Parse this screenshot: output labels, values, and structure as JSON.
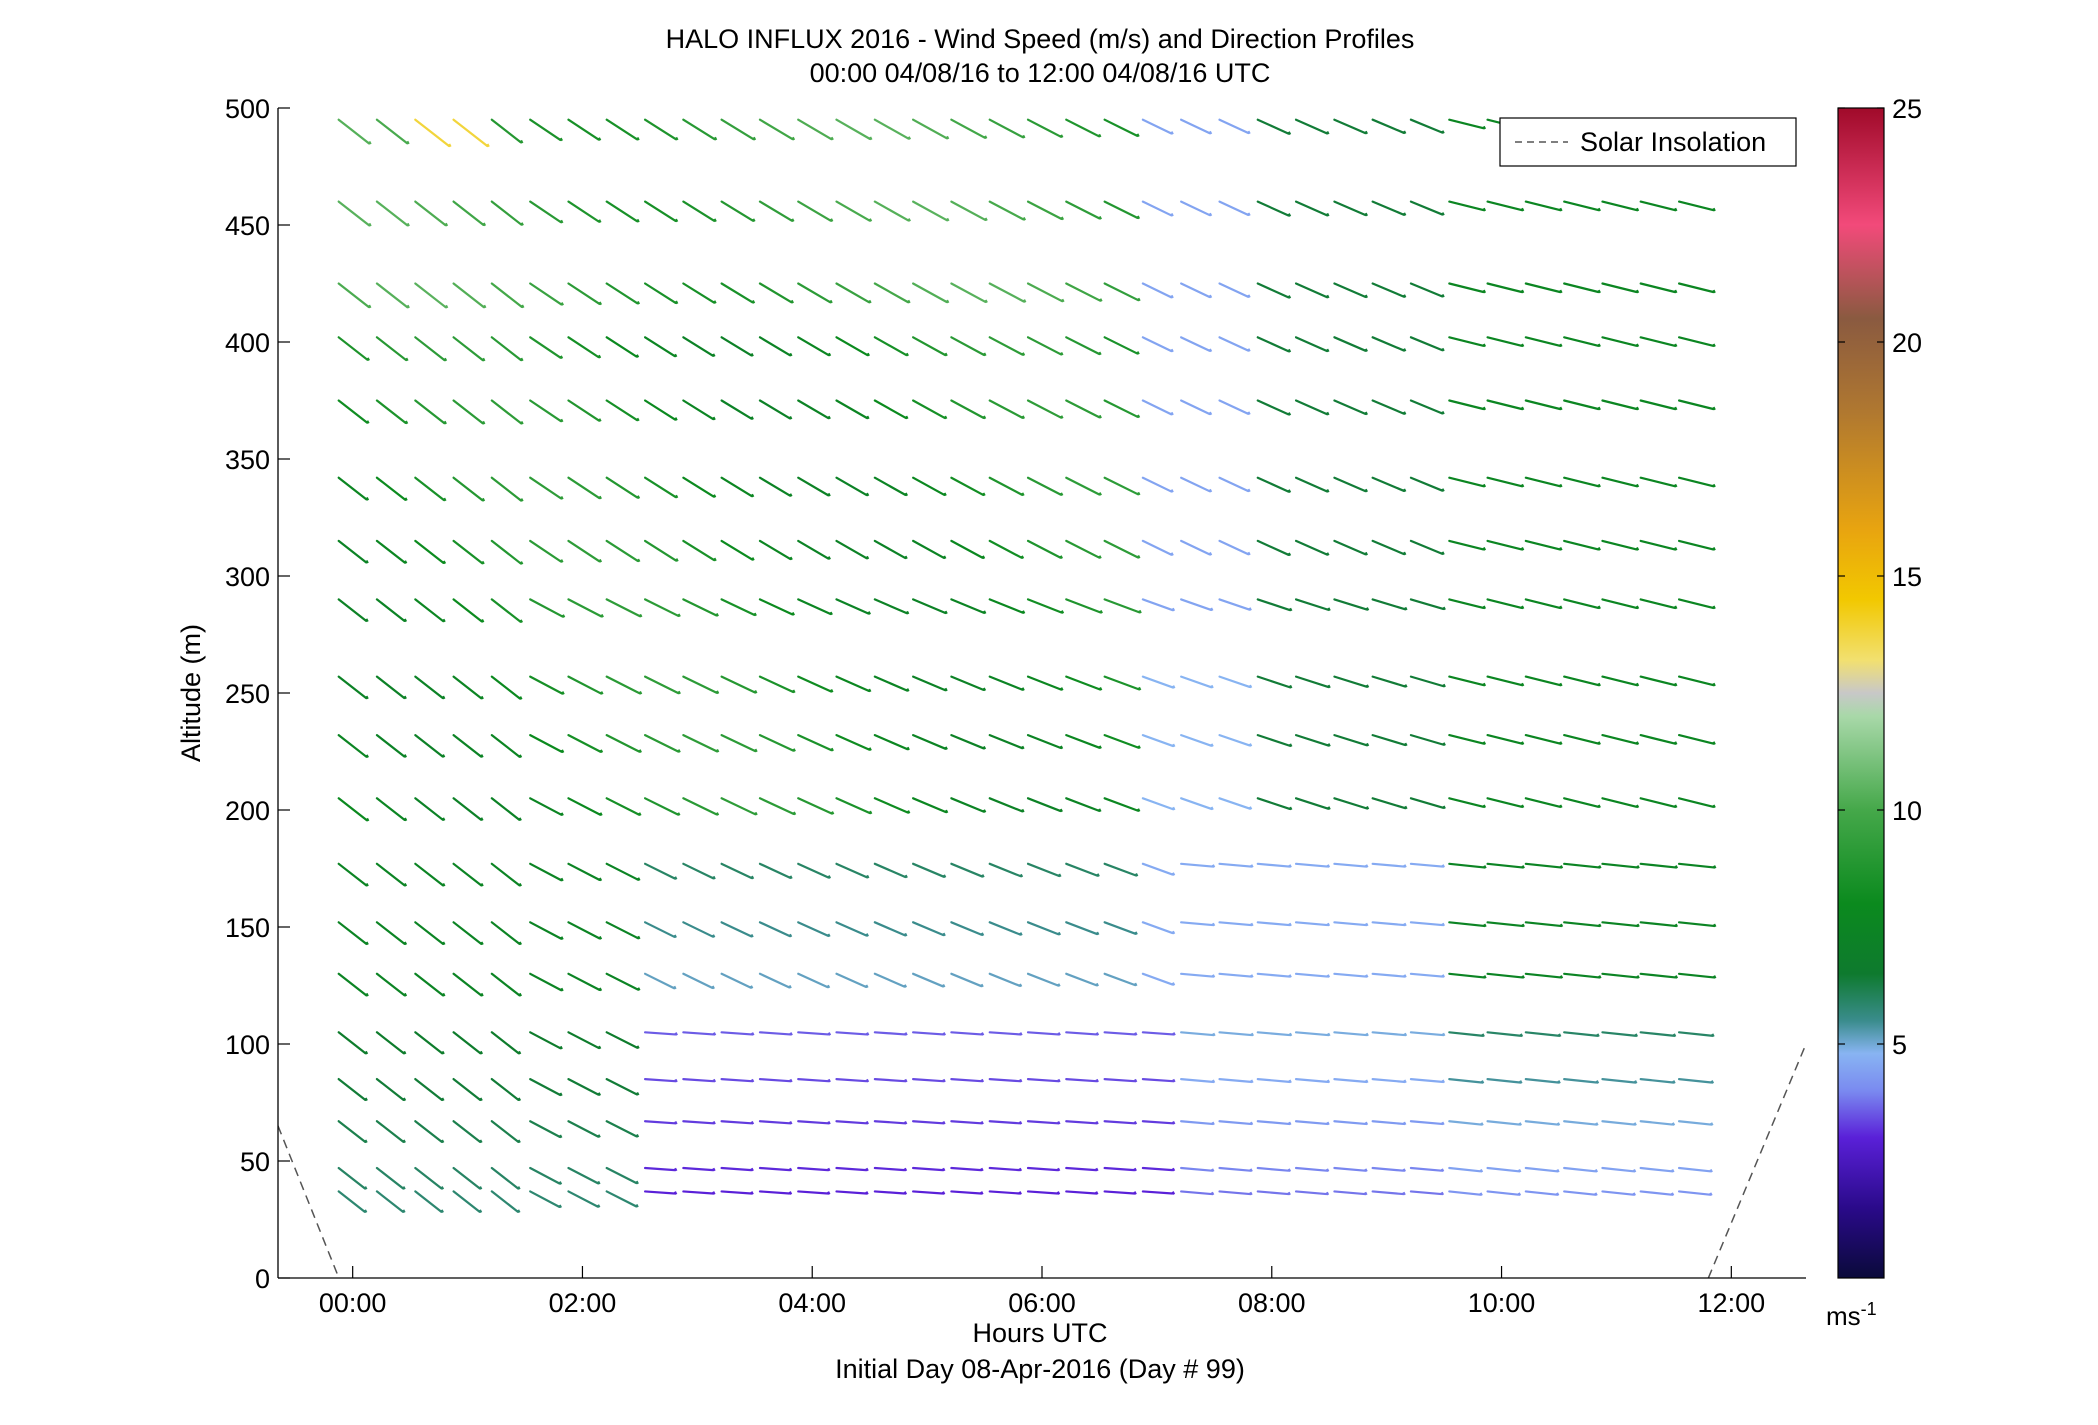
{
  "chart_data": {
    "type": "scatter",
    "subtype": "wind-barb-profile",
    "title": "HALO INFLUX 2016 - Wind Speed (m/s) and Direction Profiles",
    "subtitle": "00:00 04/08/16 to 12:00 04/08/16  UTC",
    "xlabel": "Hours UTC",
    "xlabel2": "Initial Day 08-Apr-2016 (Day # 99)",
    "ylabel": "Altitude (m)",
    "xlim_hours": [
      -0.65,
      12.65
    ],
    "ylim": [
      0,
      500
    ],
    "x_ticks": [
      {
        "value": 0,
        "label": "00:00"
      },
      {
        "value": 2,
        "label": "02:00"
      },
      {
        "value": 4,
        "label": "04:00"
      },
      {
        "value": 6,
        "label": "06:00"
      },
      {
        "value": 8,
        "label": "08:00"
      },
      {
        "value": 10,
        "label": "10:00"
      },
      {
        "value": 12,
        "label": "12:00"
      }
    ],
    "y_ticks": [
      0,
      50,
      100,
      150,
      200,
      250,
      300,
      350,
      400,
      450,
      500
    ],
    "legend": {
      "placement": "top-right",
      "entries": [
        {
          "label": "Solar Insolation",
          "style": "dashed",
          "color": "#555555"
        }
      ]
    },
    "colorbar": {
      "min": 0,
      "max": 25,
      "ticks": [
        5,
        10,
        15,
        20,
        25
      ],
      "unit_label": "ms",
      "unit_exponent": "-1",
      "stops": [
        {
          "v": 0.0,
          "c": "#0a0a3a"
        },
        {
          "v": 1.5,
          "c": "#2a0a8a"
        },
        {
          "v": 3.0,
          "c": "#5a20d8"
        },
        {
          "v": 4.0,
          "c": "#7a8af0"
        },
        {
          "v": 4.8,
          "c": "#88b4f2"
        },
        {
          "v": 5.5,
          "c": "#3a8c8c"
        },
        {
          "v": 6.5,
          "c": "#0e7a2e"
        },
        {
          "v": 8.0,
          "c": "#0b8a1e"
        },
        {
          "v": 10.0,
          "c": "#45a84a"
        },
        {
          "v": 12.0,
          "c": "#a8d8a8"
        },
        {
          "v": 12.5,
          "c": "#c8c8c8"
        },
        {
          "v": 13.2,
          "c": "#f2e070"
        },
        {
          "v": 14.5,
          "c": "#f2c800"
        },
        {
          "v": 16.0,
          "c": "#e8a410"
        },
        {
          "v": 18.5,
          "c": "#b07830"
        },
        {
          "v": 20.5,
          "c": "#8a5a40"
        },
        {
          "v": 22.5,
          "c": "#f24a7a"
        },
        {
          "v": 25.0,
          "c": "#a00a2a"
        }
      ]
    },
    "solar_insolation": [
      {
        "segment": "left",
        "x": [
          -0.65,
          -0.12
        ],
        "y": [
          65,
          0
        ]
      },
      {
        "segment": "right",
        "x": [
          11.8,
          12.65
        ],
        "y": [
          0,
          100
        ]
      }
    ],
    "profile_times_hours": [
      0,
      0.333,
      0.667,
      1.0,
      1.333,
      1.667,
      2.0,
      2.333,
      2.667,
      3.0,
      3.333,
      3.667,
      4.0,
      4.333,
      4.667,
      5.0,
      5.333,
      5.667,
      6.0,
      6.333,
      6.667,
      7.0,
      7.333,
      7.667,
      8.0,
      8.333,
      8.667,
      9.0,
      9.333,
      9.667,
      10.0,
      10.333,
      10.667,
      11.0,
      11.333,
      11.667
    ],
    "barb_altitudes_m": [
      37,
      47,
      67,
      85,
      105,
      130,
      152,
      177,
      205,
      232,
      257,
      290,
      315,
      342,
      375,
      402,
      425,
      460,
      495
    ],
    "speed_summary": [
      {
        "layer": "below 110 m",
        "period": "02:30-07:00",
        "range_ms": [
          2.5,
          4.5
        ]
      },
      {
        "layer": "120-200 m",
        "period": "07:00-09:30",
        "range_ms": [
          4.0,
          5.5
        ]
      },
      {
        "layer": "above 200 m",
        "period": "00:00-07:00",
        "range_ms": [
          6.5,
          10.0
        ]
      },
      {
        "layer": "above 200 m",
        "period": "10:00-12:00",
        "range_ms": [
          7.0,
          8.5
        ]
      },
      {
        "layer": "near 500 m",
        "period": "00:30-01:00",
        "range_ms": [
          13.0,
          14.5
        ]
      }
    ]
  }
}
